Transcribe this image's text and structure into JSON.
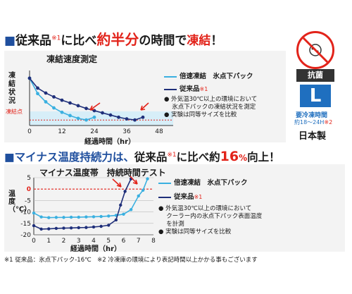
{
  "headline1": {
    "mark": "■",
    "part1": "従来品",
    "note": "※1",
    "part2": "に比べ",
    "emph": "約半分",
    "part3": "の時間で",
    "emph2": "凍結",
    "end": "！"
  },
  "chart1_title": "凍結速度測定",
  "chart1_legend": [
    {
      "label": "倍速凍結　氷点下パック",
      "color": "#3ab0e0"
    },
    {
      "label": "従来品",
      "note": "※1",
      "color": "#1f2f7a"
    }
  ],
  "chart1_notes": [
    "● 外気温30℃以上の環境において",
    "　 氷点下パックの凍結状況を測定",
    "● 実験は同等サイズを比較"
  ],
  "side": {
    "antibac": "抗菌",
    "size": "L",
    "freeze_label": "要冷凍時間",
    "freeze_time": "約18〜24H",
    "freeze_note": "※2",
    "origin": "日本製"
  },
  "headline2": {
    "mark": "■",
    "part1": "マイナス温度持続力は、",
    "part2": "従来品",
    "note": "※1",
    "part3": "に比べ約",
    "emph": "16",
    "unit": "%",
    "part4": "向上！"
  },
  "chart2_title": "マイナス温度帯　持続時間テスト",
  "chart2_legend": [
    {
      "label": "倍速凍結　氷点下パック",
      "color": "#3ab0e0"
    },
    {
      "label": "従来品",
      "note": "※1",
      "color": "#1f2f7a"
    }
  ],
  "chart2_notes": [
    "● 外気温30℃以上の環境において",
    "　 クーラー内の氷点下パック表面温度",
    "　 を計測",
    "● 実験は同等サイズを比較"
  ],
  "footer": "※1 従来品：氷点下パック-16℃　※2 冷凍庫の環境により表記時間以上かかる事もございます",
  "chart_data": [
    {
      "type": "line",
      "title": "凍結速度測定",
      "xlabel": "経過時間（hr）",
      "ylabel": "凍結状況",
      "x_ticks": [
        "0",
        "12",
        "24",
        "36",
        "48"
      ],
      "xlim": [
        0,
        48
      ],
      "y_marker_label": "凍結点",
      "ylim": [
        0,
        10
      ],
      "y_marker": 1,
      "series": [
        {
          "name": "倍速凍結　氷点下パック",
          "color": "#3ab0e0",
          "x": [
            0,
            3,
            6,
            9,
            12,
            15,
            18,
            21,
            24
          ],
          "y": [
            8.6,
            5.8,
            4.3,
            3.2,
            2.4,
            1.8,
            1.3,
            1.0,
            1.5
          ]
        },
        {
          "name": "従来品",
          "color": "#1f2f7a",
          "x": [
            0,
            3,
            6,
            9,
            12,
            15,
            18,
            21,
            24,
            27,
            30,
            33,
            36,
            39,
            42
          ],
          "y": [
            8.6,
            6.8,
            5.9,
            5.2,
            4.6,
            4.1,
            3.6,
            3.1,
            2.7,
            2.3,
            1.9,
            1.5,
            1.2,
            1.0,
            1.5
          ]
        }
      ]
    },
    {
      "type": "line",
      "title": "マイナス温度帯　持続時間テスト",
      "xlabel": "経過時間（hr）",
      "ylabel": "温度（℃）",
      "x_ticks": [
        "0",
        "1",
        "2",
        "3",
        "4",
        "5",
        "6",
        "7",
        "8"
      ],
      "y_ticks": [
        "5",
        "0",
        "-5",
        "-10",
        "-15",
        "-20"
      ],
      "xlim": [
        0,
        8
      ],
      "ylim": [
        -20,
        5
      ],
      "series": [
        {
          "name": "倍速凍結　氷点下パック",
          "color": "#3ab0e0",
          "x": [
            0,
            0.5,
            1,
            1.5,
            2,
            2.5,
            3,
            3.5,
            4,
            4.5,
            5,
            5.5,
            6,
            6.5,
            7,
            7.3,
            7.6
          ],
          "y": [
            -10.5,
            -12.2,
            -12.5,
            -12.4,
            -12.4,
            -12.3,
            -12.3,
            -12.2,
            -12.1,
            -12.0,
            -11.8,
            -11.5,
            -11.0,
            -9.0,
            -3.0,
            -0.5,
            4.5
          ]
        },
        {
          "name": "従来品",
          "color": "#1f2f7a",
          "x": [
            0,
            0.5,
            1,
            1.5,
            2,
            2.5,
            3,
            3.5,
            4,
            4.5,
            5,
            5.5,
            5.8,
            6.1,
            6.5
          ],
          "y": [
            -16.0,
            -17.5,
            -17.4,
            -17.2,
            -17.1,
            -17.0,
            -16.9,
            -16.8,
            -16.6,
            -16.3,
            -15.8,
            -13.5,
            -7.0,
            -1.0,
            4.5
          ]
        }
      ]
    }
  ]
}
